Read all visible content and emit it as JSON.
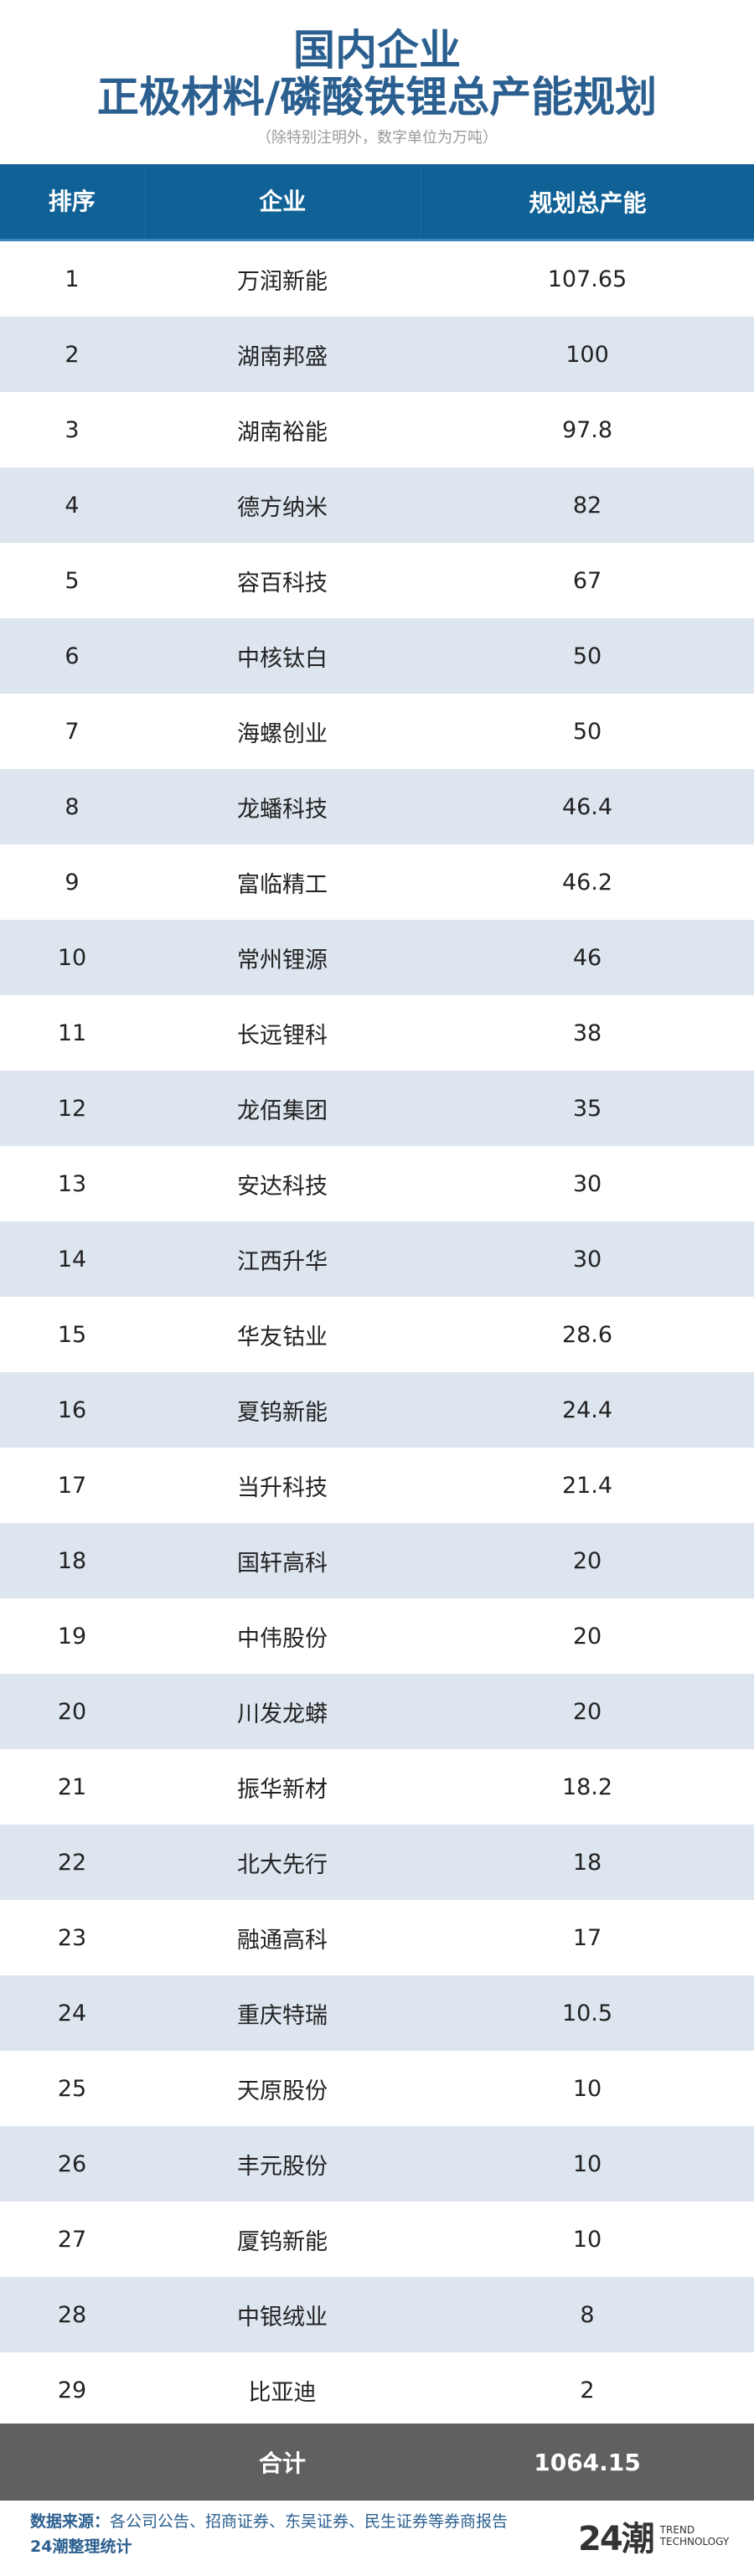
{
  "header": {
    "title_line1": "国内企业",
    "title_line2": "正极材料/磷酸铁锂总产能规划",
    "subtitle": "（除特别注明外，数字单位为万吨）"
  },
  "table": {
    "columns": [
      "排序",
      "企业",
      "规划总产能"
    ],
    "rows": [
      {
        "rank": "1",
        "company": "万润新能",
        "capacity": "107.65"
      },
      {
        "rank": "2",
        "company": "湖南邦盛",
        "capacity": "100"
      },
      {
        "rank": "3",
        "company": "湖南裕能",
        "capacity": "97.8"
      },
      {
        "rank": "4",
        "company": "德方纳米",
        "capacity": "82"
      },
      {
        "rank": "5",
        "company": "容百科技",
        "capacity": "67"
      },
      {
        "rank": "6",
        "company": "中核钛白",
        "capacity": "50"
      },
      {
        "rank": "7",
        "company": "海螺创业",
        "capacity": "50"
      },
      {
        "rank": "8",
        "company": "龙蟠科技",
        "capacity": "46.4"
      },
      {
        "rank": "9",
        "company": "富临精工",
        "capacity": "46.2"
      },
      {
        "rank": "10",
        "company": "常州锂源",
        "capacity": "46"
      },
      {
        "rank": "11",
        "company": "长远锂科",
        "capacity": "38"
      },
      {
        "rank": "12",
        "company": "龙佰集团",
        "capacity": "35"
      },
      {
        "rank": "13",
        "company": "安达科技",
        "capacity": "30"
      },
      {
        "rank": "14",
        "company": "江西升华",
        "capacity": "30"
      },
      {
        "rank": "15",
        "company": "华友钴业",
        "capacity": "28.6"
      },
      {
        "rank": "16",
        "company": "夏钨新能",
        "capacity": "24.4"
      },
      {
        "rank": "17",
        "company": "当升科技",
        "capacity": "21.4"
      },
      {
        "rank": "18",
        "company": "国轩高科",
        "capacity": "20"
      },
      {
        "rank": "19",
        "company": "中伟股份",
        "capacity": "20"
      },
      {
        "rank": "20",
        "company": "川发龙蟒",
        "capacity": "20"
      },
      {
        "rank": "21",
        "company": "振华新材",
        "capacity": "18.2"
      },
      {
        "rank": "22",
        "company": "北大先行",
        "capacity": "18"
      },
      {
        "rank": "23",
        "company": "融通高科",
        "capacity": "17"
      },
      {
        "rank": "24",
        "company": "重庆特瑞",
        "capacity": "10.5"
      },
      {
        "rank": "25",
        "company": "天原股份",
        "capacity": "10"
      },
      {
        "rank": "26",
        "company": "丰元股份",
        "capacity": "10"
      },
      {
        "rank": "27",
        "company": "厦钨新能",
        "capacity": "10"
      },
      {
        "rank": "28",
        "company": "中银绒业",
        "capacity": "8"
      },
      {
        "rank": "29",
        "company": "比亚迪",
        "capacity": "2"
      }
    ],
    "total_label": "合计",
    "total_value": "1064.15"
  },
  "footer": {
    "source_label": "数据来源：",
    "source_text": "各公司公告、招商证券、东吴证券、民生证券等券商报告",
    "credit": "24潮整理统计",
    "logo_mark": "24潮",
    "logo_line1": "TREND",
    "logo_line2": "TECHNOLOGY"
  },
  "colors": {
    "title": "#2b5f8f",
    "header_bg": "#0f6196",
    "alt_row": "#dde5ee",
    "total_bg": "#606060"
  }
}
